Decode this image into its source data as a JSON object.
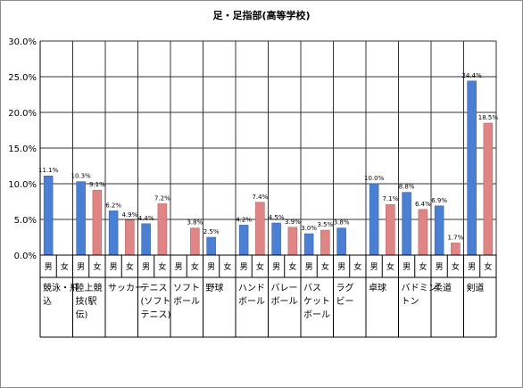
{
  "chart_data": {
    "type": "bar",
    "title": "足・足指部(高等学校)",
    "xlabel": "",
    "ylabel": "",
    "ylim": [
      0,
      30
    ],
    "y_ticks": [
      "0.0%",
      "5.0%",
      "10.0%",
      "15.0%",
      "20.0%",
      "25.0%",
      "30.0%"
    ],
    "grid": true,
    "legend": "none",
    "colors": {
      "男": "#4a7fd4",
      "女": "#e08585",
      "grid": "#333333"
    },
    "sex_labels": [
      "男",
      "女"
    ],
    "categories": [
      [
        "競泳・飛",
        "込"
      ],
      [
        "陸上競",
        "技(駅",
        "伝)"
      ],
      [
        "サッカー"
      ],
      [
        "テニス",
        "(ソフト",
        "テニス)"
      ],
      [
        "ソフト",
        "ボール"
      ],
      [
        "野球"
      ],
      [
        "ハンド",
        "ボール"
      ],
      [
        "バレー",
        "ボール"
      ],
      [
        "バス",
        "ケット",
        "ボール"
      ],
      [
        "ラグ",
        "ビー"
      ],
      [
        "卓球"
      ],
      [
        "バドミン",
        "トン"
      ],
      [
        "柔道"
      ],
      [
        "剣道"
      ]
    ],
    "series": [
      {
        "name": "男",
        "values": [
          11.1,
          10.3,
          6.2,
          4.4,
          null,
          2.5,
          4.2,
          4.5,
          3.0,
          3.8,
          10.0,
          8.8,
          6.9,
          24.4
        ],
        "labels": [
          "11.1%",
          "10.3%",
          "6.2%",
          "4.4%",
          "",
          "2.5%",
          "4.2%",
          "4.5%",
          "3.0%",
          "3.8%",
          "10.0%",
          "8.8%",
          "6.9%",
          "24.4%"
        ]
      },
      {
        "name": "女",
        "values": [
          null,
          9.1,
          4.9,
          7.2,
          3.8,
          null,
          7.4,
          3.9,
          3.5,
          null,
          7.1,
          6.4,
          1.7,
          18.5
        ],
        "labels": [
          "",
          "9.1%",
          "4.9%",
          "7.2%",
          "3.8%",
          "",
          "7.4%",
          "3.9%",
          "3.5%",
          "",
          "7.1%",
          "6.4%",
          "1.7%",
          "18.5%"
        ]
      }
    ]
  }
}
